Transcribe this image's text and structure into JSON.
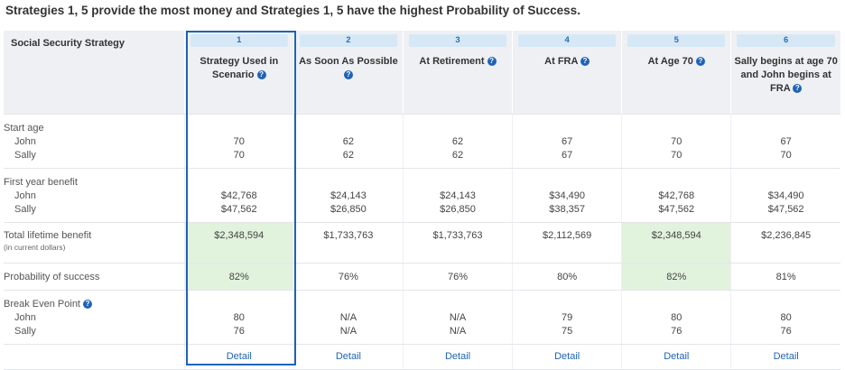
{
  "heading": "Strategies 1, 5 provide the most money and Strategies 1, 5 have the highest Probability of Success.",
  "table": {
    "header_label": "Social Security Strategy",
    "help_glyph": "?",
    "strategies": [
      {
        "num": "1",
        "name": "Strategy Used in Scenario",
        "help": true
      },
      {
        "num": "2",
        "name": "As Soon As Possible",
        "help": true
      },
      {
        "num": "3",
        "name": "At Retirement",
        "help": true
      },
      {
        "num": "4",
        "name": "At FRA",
        "help": true
      },
      {
        "num": "5",
        "name": "At Age 70",
        "help": true
      },
      {
        "num": "6",
        "name": "Sally begins at age 70 and John begins at FRA",
        "help": true
      }
    ],
    "rows": {
      "start_age": {
        "label": "Start age",
        "people": [
          "John",
          "Sally"
        ],
        "values": [
          [
            "70",
            "70"
          ],
          [
            "62",
            "62"
          ],
          [
            "62",
            "62"
          ],
          [
            "67",
            "67"
          ],
          [
            "70",
            "70"
          ],
          [
            "67",
            "70"
          ]
        ]
      },
      "first_year": {
        "label": "First year benefit",
        "people": [
          "John",
          "Sally"
        ],
        "values": [
          [
            "$42,768",
            "$47,562"
          ],
          [
            "$24,143",
            "$26,850"
          ],
          [
            "$24,143",
            "$26,850"
          ],
          [
            "$34,490",
            "$38,357"
          ],
          [
            "$42,768",
            "$47,562"
          ],
          [
            "$34,490",
            "$47,562"
          ]
        ]
      },
      "lifetime": {
        "label": "Total lifetime benefit",
        "sublabel": "(in current dollars)",
        "values": [
          "$2,348,594",
          "$1,733,763",
          "$1,733,763",
          "$2,112,569",
          "$2,348,594",
          "$2,236,845"
        ]
      },
      "probability": {
        "label": "Probability of success",
        "values": [
          "82%",
          "76%",
          "76%",
          "80%",
          "82%",
          "81%"
        ]
      },
      "break_even": {
        "label": "Break Even Point",
        "people": [
          "John",
          "Sally"
        ],
        "values": [
          [
            "80",
            "76"
          ],
          [
            "N/A",
            "N/A"
          ],
          [
            "N/A",
            "N/A"
          ],
          [
            "79",
            "75"
          ],
          [
            "80",
            "76"
          ],
          [
            "80",
            "76"
          ]
        ]
      },
      "detail_label": "Detail"
    },
    "highlight_color": "#e1f2dd",
    "accent_color": "#1f63b5"
  }
}
